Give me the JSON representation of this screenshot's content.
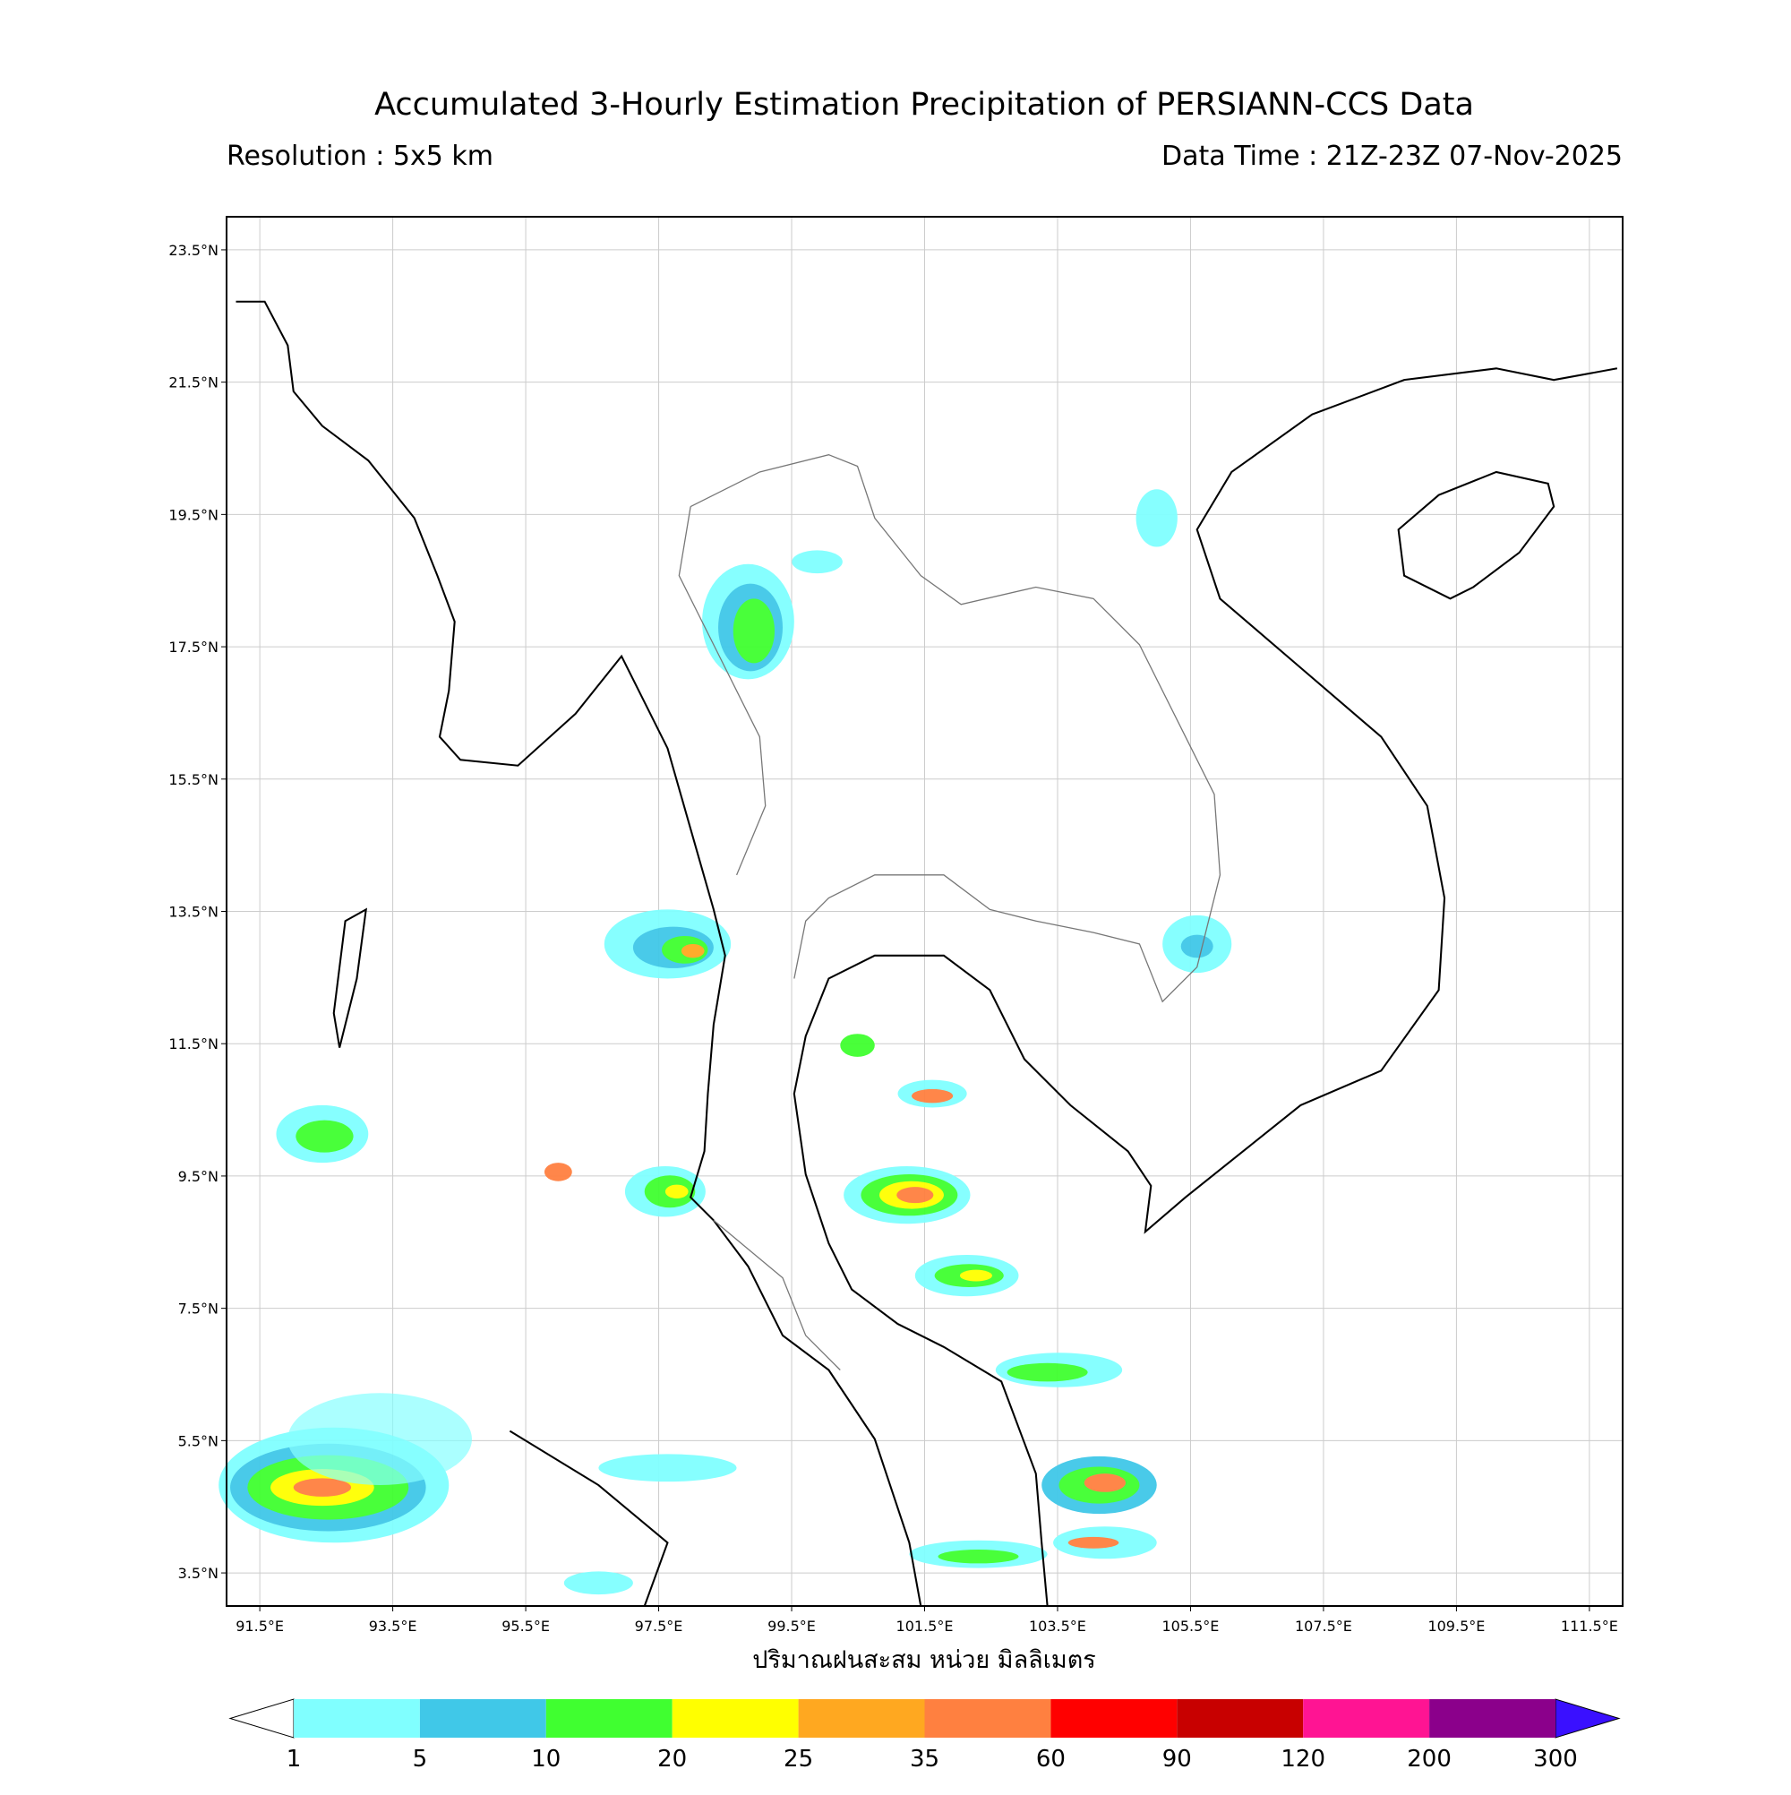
{
  "title": "Accumulated 3-Hourly Estimation Precipitation of PERSIANN-CCS Data",
  "resolution": "Resolution : 5x5 km",
  "data_time": "Data Time : 21Z-23Z 07-Nov-2025",
  "map": {
    "lon_range": [
      91,
      112
    ],
    "lat_range": [
      3,
      24
    ],
    "lon_ticks": [
      {
        "value": 91.5,
        "label": "91.5°E"
      },
      {
        "value": 93.5,
        "label": "93.5°E"
      },
      {
        "value": 95.5,
        "label": "95.5°E"
      },
      {
        "value": 97.5,
        "label": "97.5°E"
      },
      {
        "value": 99.5,
        "label": "99.5°E"
      },
      {
        "value": 101.5,
        "label": "101.5°E"
      },
      {
        "value": 103.5,
        "label": "103.5°E"
      },
      {
        "value": 105.5,
        "label": "105.5°E"
      },
      {
        "value": 107.5,
        "label": "107.5°E"
      },
      {
        "value": 109.5,
        "label": "109.5°E"
      },
      {
        "value": 111.5,
        "label": "111.5°E"
      }
    ],
    "lat_ticks": [
      {
        "value": 23.5,
        "label": "23.5°N"
      },
      {
        "value": 21.5,
        "label": "21.5°N"
      },
      {
        "value": 19.5,
        "label": "19.5°N"
      },
      {
        "value": 17.5,
        "label": "17.5°N"
      },
      {
        "value": 15.5,
        "label": "15.5°N"
      },
      {
        "value": 13.5,
        "label": "13.5°N"
      },
      {
        "value": 11.5,
        "label": "11.5°N"
      },
      {
        "value": 9.5,
        "label": "9.5°N"
      },
      {
        "value": 7.5,
        "label": "7.5°N"
      },
      {
        "value": 5.5,
        "label": "5.5°N"
      },
      {
        "value": 3.5,
        "label": "3.5°N"
      }
    ]
  },
  "x_axis_label": "ปริมาณฝนสะสม หน่วย มิลลิเมตร",
  "colorbar": {
    "ticks": [
      1,
      5,
      10,
      20,
      25,
      35,
      60,
      90,
      120,
      200,
      300
    ],
    "colors": [
      "#80ffff",
      "#40c8e8",
      "#40ff30",
      "#ffff00",
      "#ffa820",
      "#ff8040",
      "#ff0000",
      "#c80000",
      "#ff1493",
      "#8b008b"
    ],
    "under_color": "#ffffff",
    "over_color": "#3a10ff"
  }
}
